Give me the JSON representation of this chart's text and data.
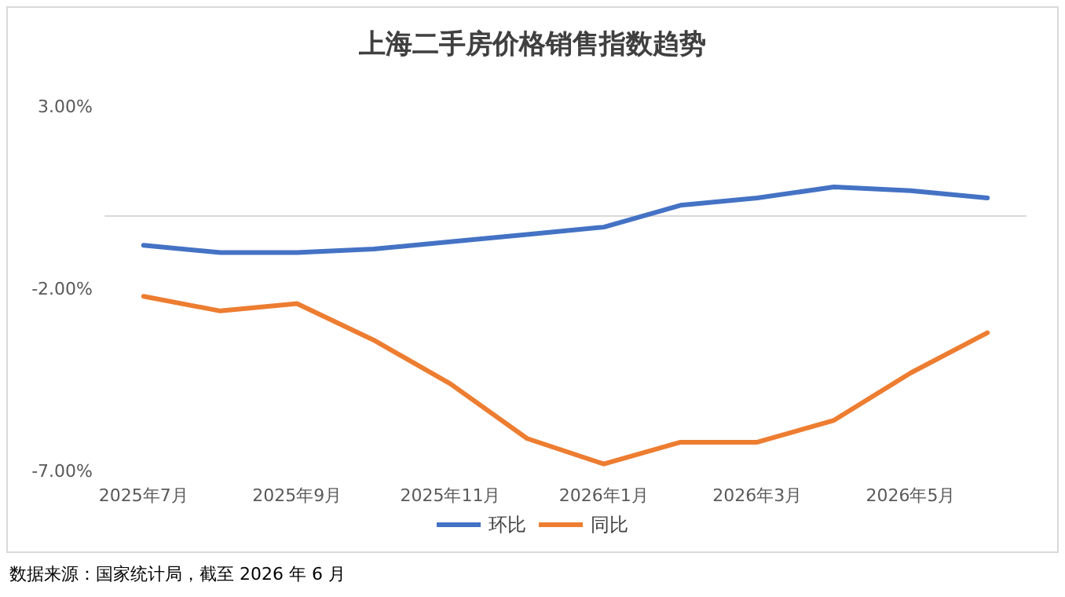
{
  "chart_data": {
    "type": "line",
    "title": "上海二手房价格销售指数趋势",
    "categories": [
      "2025年7月",
      null,
      "2025年9月",
      null,
      "2025年11月",
      null,
      "2026年1月",
      null,
      "2026年3月",
      null,
      "2026年5月",
      null
    ],
    "series": [
      {
        "name": "环比",
        "color": "#4472c4",
        "values": [
          -0.8,
          -1.0,
          -1.0,
          -0.9,
          -0.7,
          -0.5,
          -0.3,
          0.3,
          0.5,
          0.8,
          0.7,
          0.5
        ]
      },
      {
        "name": "同比",
        "color": "#ed7d31",
        "values": [
          -2.2,
          -2.6,
          -2.4,
          -3.4,
          -4.6,
          -6.1,
          -6.8,
          -6.2,
          -6.2,
          -5.6,
          -4.3,
          -3.2
        ]
      }
    ],
    "ylim": [
      -7,
      3
    ],
    "yticks": [
      {
        "value": -7,
        "label": "-7.00%"
      },
      {
        "value": -2,
        "label": "-2.00%"
      },
      {
        "value": 3,
        "label": "3.00%"
      }
    ],
    "grid": false,
    "legend": "bottom",
    "marker": "none",
    "line_style": "solid",
    "annotations": [
      "数据来源：国家统计局，截至 2026 年 6 月"
    ]
  }
}
